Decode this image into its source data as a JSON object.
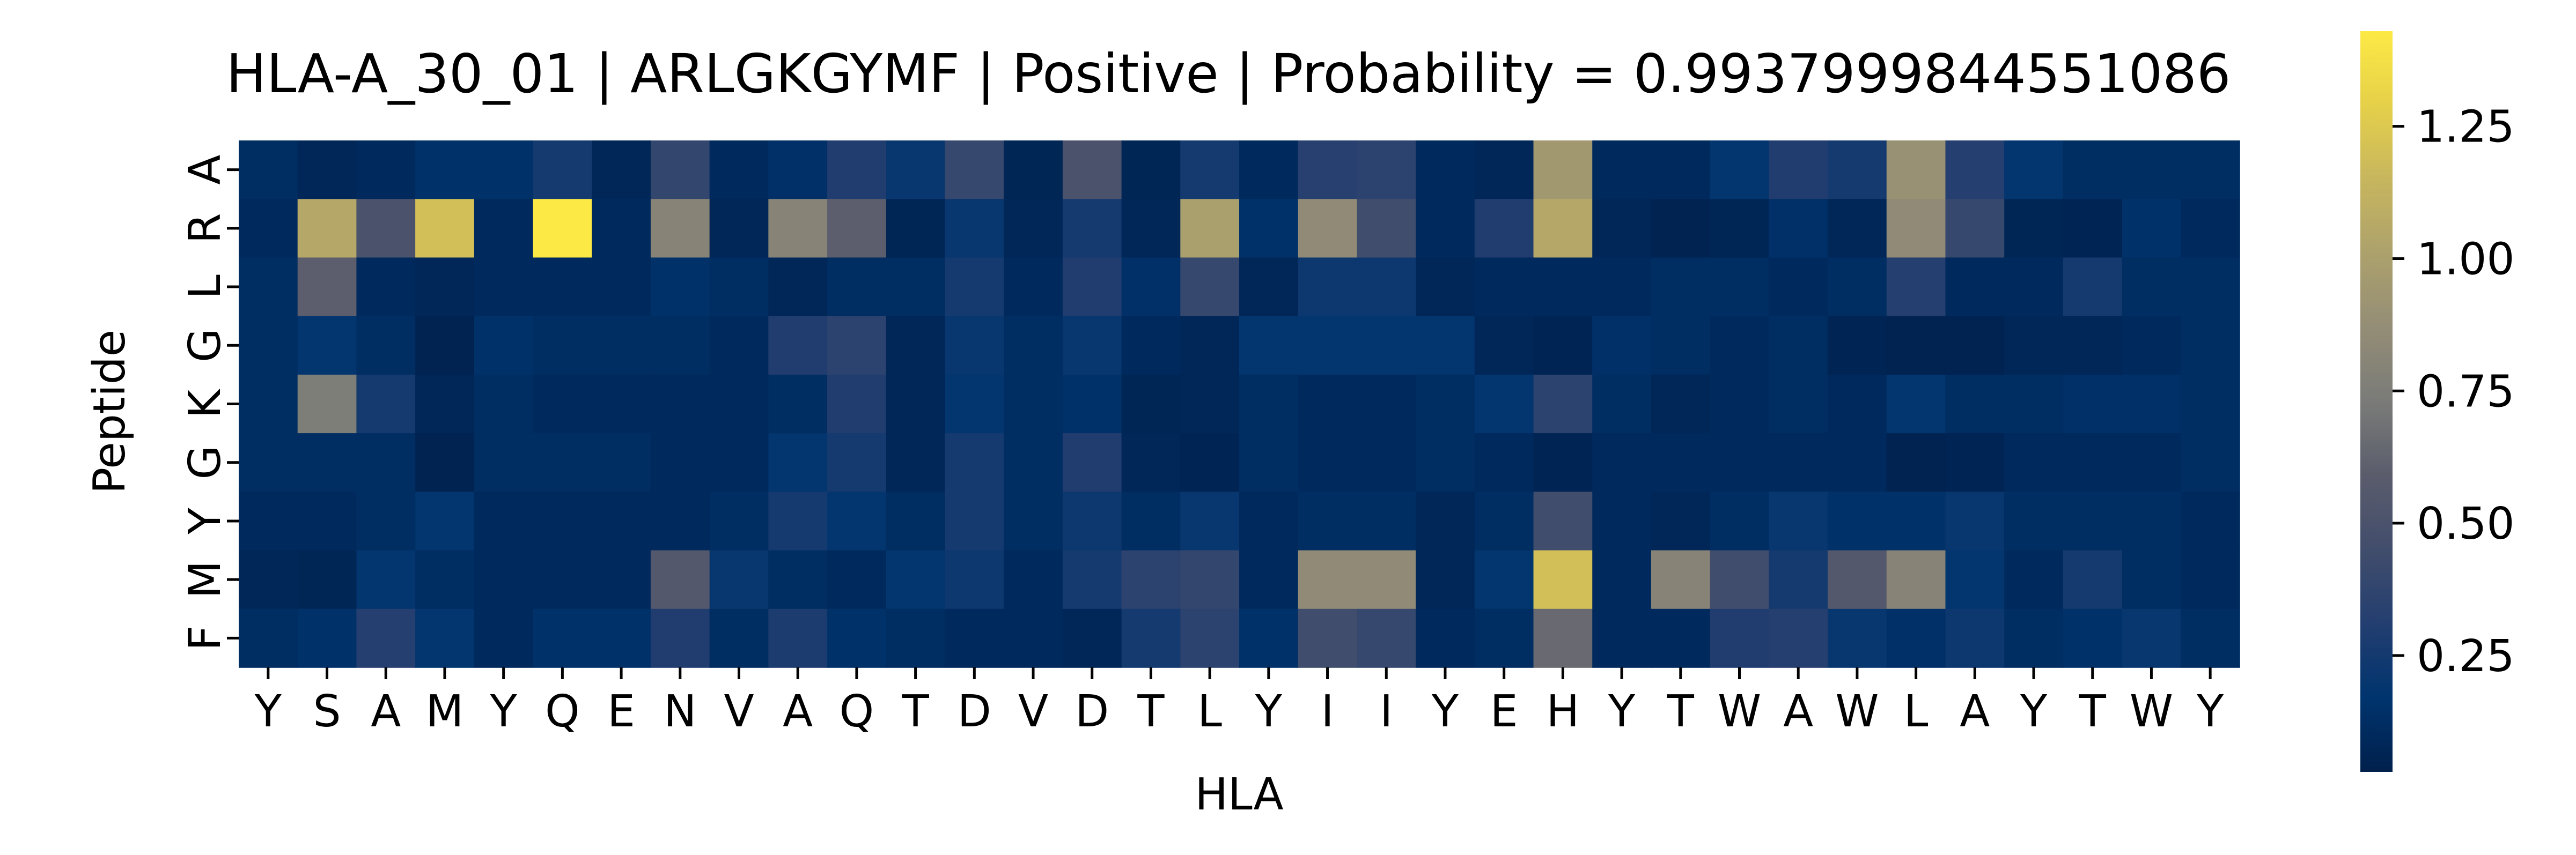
{
  "chart_data": {
    "type": "heatmap",
    "title": "HLA-A_30_01 | ARLGKGYMF | Positive | Probability = 0.9937999844551086",
    "xlabel": "HLA",
    "ylabel": "Peptide",
    "x": [
      "Y",
      "S",
      "A",
      "M",
      "Y",
      "Q",
      "E",
      "N",
      "V",
      "A",
      "Q",
      "T",
      "D",
      "V",
      "D",
      "T",
      "L",
      "Y",
      "I",
      "I",
      "Y",
      "E",
      "H",
      "Y",
      "T",
      "W",
      "A",
      "W",
      "L",
      "A",
      "Y",
      "T",
      "W",
      "Y"
    ],
    "y": [
      "A",
      "R",
      "L",
      "G",
      "K",
      "G",
      "Y",
      "M",
      "F"
    ],
    "colormap": "cividis",
    "colorbar": {
      "range": [
        0.03,
        1.43
      ],
      "ticks": [
        "0.25",
        "0.50",
        "0.75",
        "1.00",
        "1.25"
      ],
      "tick_values": [
        0.25,
        0.5,
        0.75,
        1.0,
        1.25
      ]
    },
    "values": [
      [
        0.12,
        0.08,
        0.1,
        0.15,
        0.15,
        0.25,
        0.08,
        0.38,
        0.1,
        0.14,
        0.3,
        0.2,
        0.4,
        0.07,
        0.5,
        0.07,
        0.25,
        0.1,
        0.33,
        0.35,
        0.1,
        0.08,
        0.95,
        0.1,
        0.1,
        0.18,
        0.3,
        0.25,
        0.9,
        0.32,
        0.18,
        0.12,
        0.12,
        0.12
      ],
      [
        0.1,
        1.05,
        0.5,
        1.2,
        0.1,
        1.43,
        0.1,
        0.8,
        0.08,
        0.8,
        0.6,
        0.07,
        0.2,
        0.08,
        0.25,
        0.08,
        1.0,
        0.15,
        0.85,
        0.45,
        0.1,
        0.3,
        1.05,
        0.08,
        0.05,
        0.07,
        0.14,
        0.08,
        0.85,
        0.4,
        0.07,
        0.06,
        0.15,
        0.1
      ],
      [
        0.12,
        0.6,
        0.1,
        0.08,
        0.1,
        0.1,
        0.1,
        0.15,
        0.12,
        0.08,
        0.12,
        0.12,
        0.25,
        0.1,
        0.3,
        0.14,
        0.4,
        0.08,
        0.22,
        0.22,
        0.08,
        0.1,
        0.1,
        0.1,
        0.12,
        0.12,
        0.1,
        0.12,
        0.32,
        0.1,
        0.1,
        0.25,
        0.12,
        0.12
      ],
      [
        0.12,
        0.18,
        0.12,
        0.05,
        0.15,
        0.12,
        0.12,
        0.12,
        0.1,
        0.3,
        0.35,
        0.08,
        0.2,
        0.12,
        0.2,
        0.1,
        0.08,
        0.18,
        0.18,
        0.18,
        0.18,
        0.08,
        0.06,
        0.14,
        0.12,
        0.1,
        0.12,
        0.06,
        0.05,
        0.05,
        0.08,
        0.08,
        0.1,
        0.12
      ],
      [
        0.12,
        0.75,
        0.25,
        0.08,
        0.12,
        0.1,
        0.1,
        0.1,
        0.1,
        0.12,
        0.3,
        0.08,
        0.18,
        0.12,
        0.15,
        0.07,
        0.08,
        0.12,
        0.1,
        0.1,
        0.12,
        0.18,
        0.35,
        0.12,
        0.08,
        0.1,
        0.12,
        0.1,
        0.18,
        0.12,
        0.12,
        0.14,
        0.14,
        0.12
      ],
      [
        0.12,
        0.12,
        0.12,
        0.05,
        0.12,
        0.12,
        0.12,
        0.1,
        0.1,
        0.18,
        0.25,
        0.08,
        0.25,
        0.12,
        0.3,
        0.08,
        0.06,
        0.12,
        0.1,
        0.1,
        0.12,
        0.1,
        0.06,
        0.1,
        0.1,
        0.1,
        0.1,
        0.1,
        0.05,
        0.06,
        0.1,
        0.1,
        0.1,
        0.12
      ],
      [
        0.1,
        0.1,
        0.12,
        0.18,
        0.1,
        0.1,
        0.1,
        0.1,
        0.12,
        0.25,
        0.18,
        0.12,
        0.25,
        0.12,
        0.22,
        0.12,
        0.2,
        0.1,
        0.12,
        0.12,
        0.08,
        0.12,
        0.45,
        0.1,
        0.08,
        0.12,
        0.2,
        0.15,
        0.15,
        0.2,
        0.12,
        0.12,
        0.12,
        0.1
      ],
      [
        0.08,
        0.07,
        0.18,
        0.12,
        0.1,
        0.1,
        0.1,
        0.55,
        0.2,
        0.12,
        0.1,
        0.18,
        0.22,
        0.1,
        0.25,
        0.35,
        0.38,
        0.1,
        0.85,
        0.85,
        0.08,
        0.18,
        1.2,
        0.1,
        0.8,
        0.45,
        0.25,
        0.55,
        0.8,
        0.18,
        0.1,
        0.25,
        0.12,
        0.1
      ],
      [
        0.12,
        0.15,
        0.32,
        0.18,
        0.1,
        0.15,
        0.15,
        0.3,
        0.12,
        0.28,
        0.15,
        0.12,
        0.1,
        0.1,
        0.08,
        0.25,
        0.35,
        0.15,
        0.45,
        0.4,
        0.1,
        0.12,
        0.65,
        0.1,
        0.1,
        0.3,
        0.32,
        0.2,
        0.14,
        0.22,
        0.12,
        0.15,
        0.2,
        0.12
      ]
    ]
  }
}
